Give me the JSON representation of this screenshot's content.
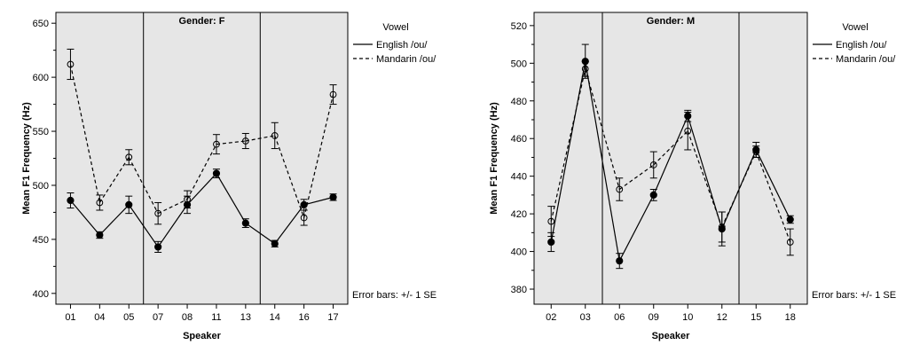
{
  "chart_data": [
    {
      "type": "line",
      "panel_title": "Gender: F",
      "xlabel": "Speaker",
      "ylabel": "Mean F1 Frequency (Hz)",
      "categories": [
        "01",
        "04",
        "05",
        "07",
        "08",
        "11",
        "13",
        "14",
        "16",
        "17"
      ],
      "ylim": [
        390,
        660
      ],
      "yticks": [
        400,
        450,
        500,
        550,
        600,
        650
      ],
      "ytick_labels": [
        "400",
        "450",
        "500",
        "550",
        "600",
        "650"
      ],
      "separators_after": [
        "05",
        "13"
      ],
      "grid": false,
      "background": "#e6e6e6",
      "legend_title": "Vowel",
      "legend_position": "right",
      "error_bar_note": "Error bars: +/- 1 SE",
      "series": [
        {
          "name": "English /ou/",
          "style": "solid",
          "marker": "filled-circle",
          "values": [
            486,
            454,
            482,
            443,
            482,
            511,
            465,
            446,
            482,
            489
          ],
          "se": [
            7,
            3,
            8,
            5,
            8,
            4,
            4,
            3,
            5,
            3
          ]
        },
        {
          "name": "Mandarin /ou/",
          "style": "dashed",
          "marker": "open-circle",
          "values": [
            612,
            484,
            526,
            474,
            487,
            538,
            541,
            546,
            470,
            584
          ],
          "se": [
            14,
            7,
            7,
            10,
            8,
            9,
            7,
            12,
            7,
            9
          ]
        }
      ]
    },
    {
      "type": "line",
      "panel_title": "Gender: M",
      "xlabel": "Speaker",
      "ylabel": "Mean F1 Frequency (Hz)",
      "categories": [
        "02",
        "03",
        "06",
        "09",
        "10",
        "12",
        "15",
        "18"
      ],
      "ylim": [
        372,
        527
      ],
      "yticks": [
        380,
        400,
        420,
        440,
        460,
        480,
        500,
        520
      ],
      "ytick_labels": [
        "380",
        "400",
        "420",
        "440",
        "460",
        "480",
        "500",
        "520"
      ],
      "separators_after": [
        "03",
        "12"
      ],
      "grid": false,
      "background": "#e6e6e6",
      "legend_title": "Vowel",
      "legend_position": "right",
      "error_bar_note": "Error bars: +/- 1 SE",
      "series": [
        {
          "name": "English /ou/",
          "style": "solid",
          "marker": "filled-circle",
          "values": [
            405,
            501,
            395,
            430,
            472,
            412,
            454,
            417
          ],
          "se": [
            5,
            9,
            4,
            3,
            3,
            9,
            4,
            2
          ]
        },
        {
          "name": "Mandarin /ou/",
          "style": "dashed",
          "marker": "open-circle",
          "values": [
            416,
            497,
            433,
            446,
            464,
            413,
            453,
            405
          ],
          "se": [
            8,
            4,
            6,
            7,
            10,
            8,
            3,
            7
          ]
        }
      ]
    }
  ]
}
